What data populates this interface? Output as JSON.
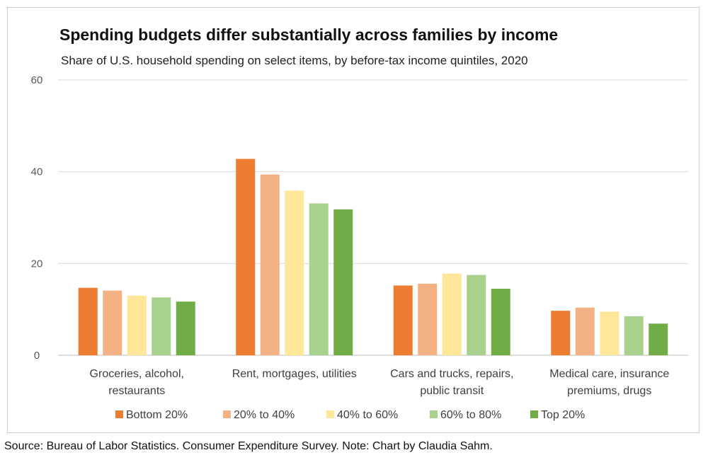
{
  "chart_data": {
    "type": "bar",
    "title": "Spending budgets differ substantially across families by income",
    "subtitle": "Share of U.S. household spending on select items, by before-tax income quintiles, 2020",
    "categories": [
      [
        "Groceries, alcohol,",
        "restaurants"
      ],
      [
        "Rent, mortgages, utilities"
      ],
      [
        "Cars and trucks, repairs,",
        "public transit"
      ],
      [
        "Medical care, insurance",
        "premiums, drugs"
      ]
    ],
    "series": [
      {
        "name": "Bottom 20%",
        "color": "#ED7D31",
        "values": [
          14.7,
          42.8,
          15.2,
          9.7
        ]
      },
      {
        "name": "20% to 40%",
        "color": "#F4B183",
        "values": [
          14.1,
          39.4,
          15.6,
          10.4
        ]
      },
      {
        "name": "40% to 60%",
        "color": "#FFE699",
        "values": [
          13.0,
          35.9,
          17.8,
          9.5
        ]
      },
      {
        "name": "60% to 80%",
        "color": "#A9D18E",
        "values": [
          12.6,
          33.1,
          17.5,
          8.5
        ]
      },
      {
        "name": "Top 20%",
        "color": "#70AD47",
        "values": [
          11.7,
          31.8,
          14.5,
          6.9
        ]
      }
    ],
    "ylim": [
      0,
      60
    ],
    "yticks": [
      0,
      20,
      40,
      60
    ],
    "grid": true,
    "legend": "bottom",
    "xlabel": "",
    "ylabel": ""
  },
  "source_note": "Source: Bureau of Labor Statistics. Consumer Expenditure Survey. Note: Chart by Claudia Sahm."
}
